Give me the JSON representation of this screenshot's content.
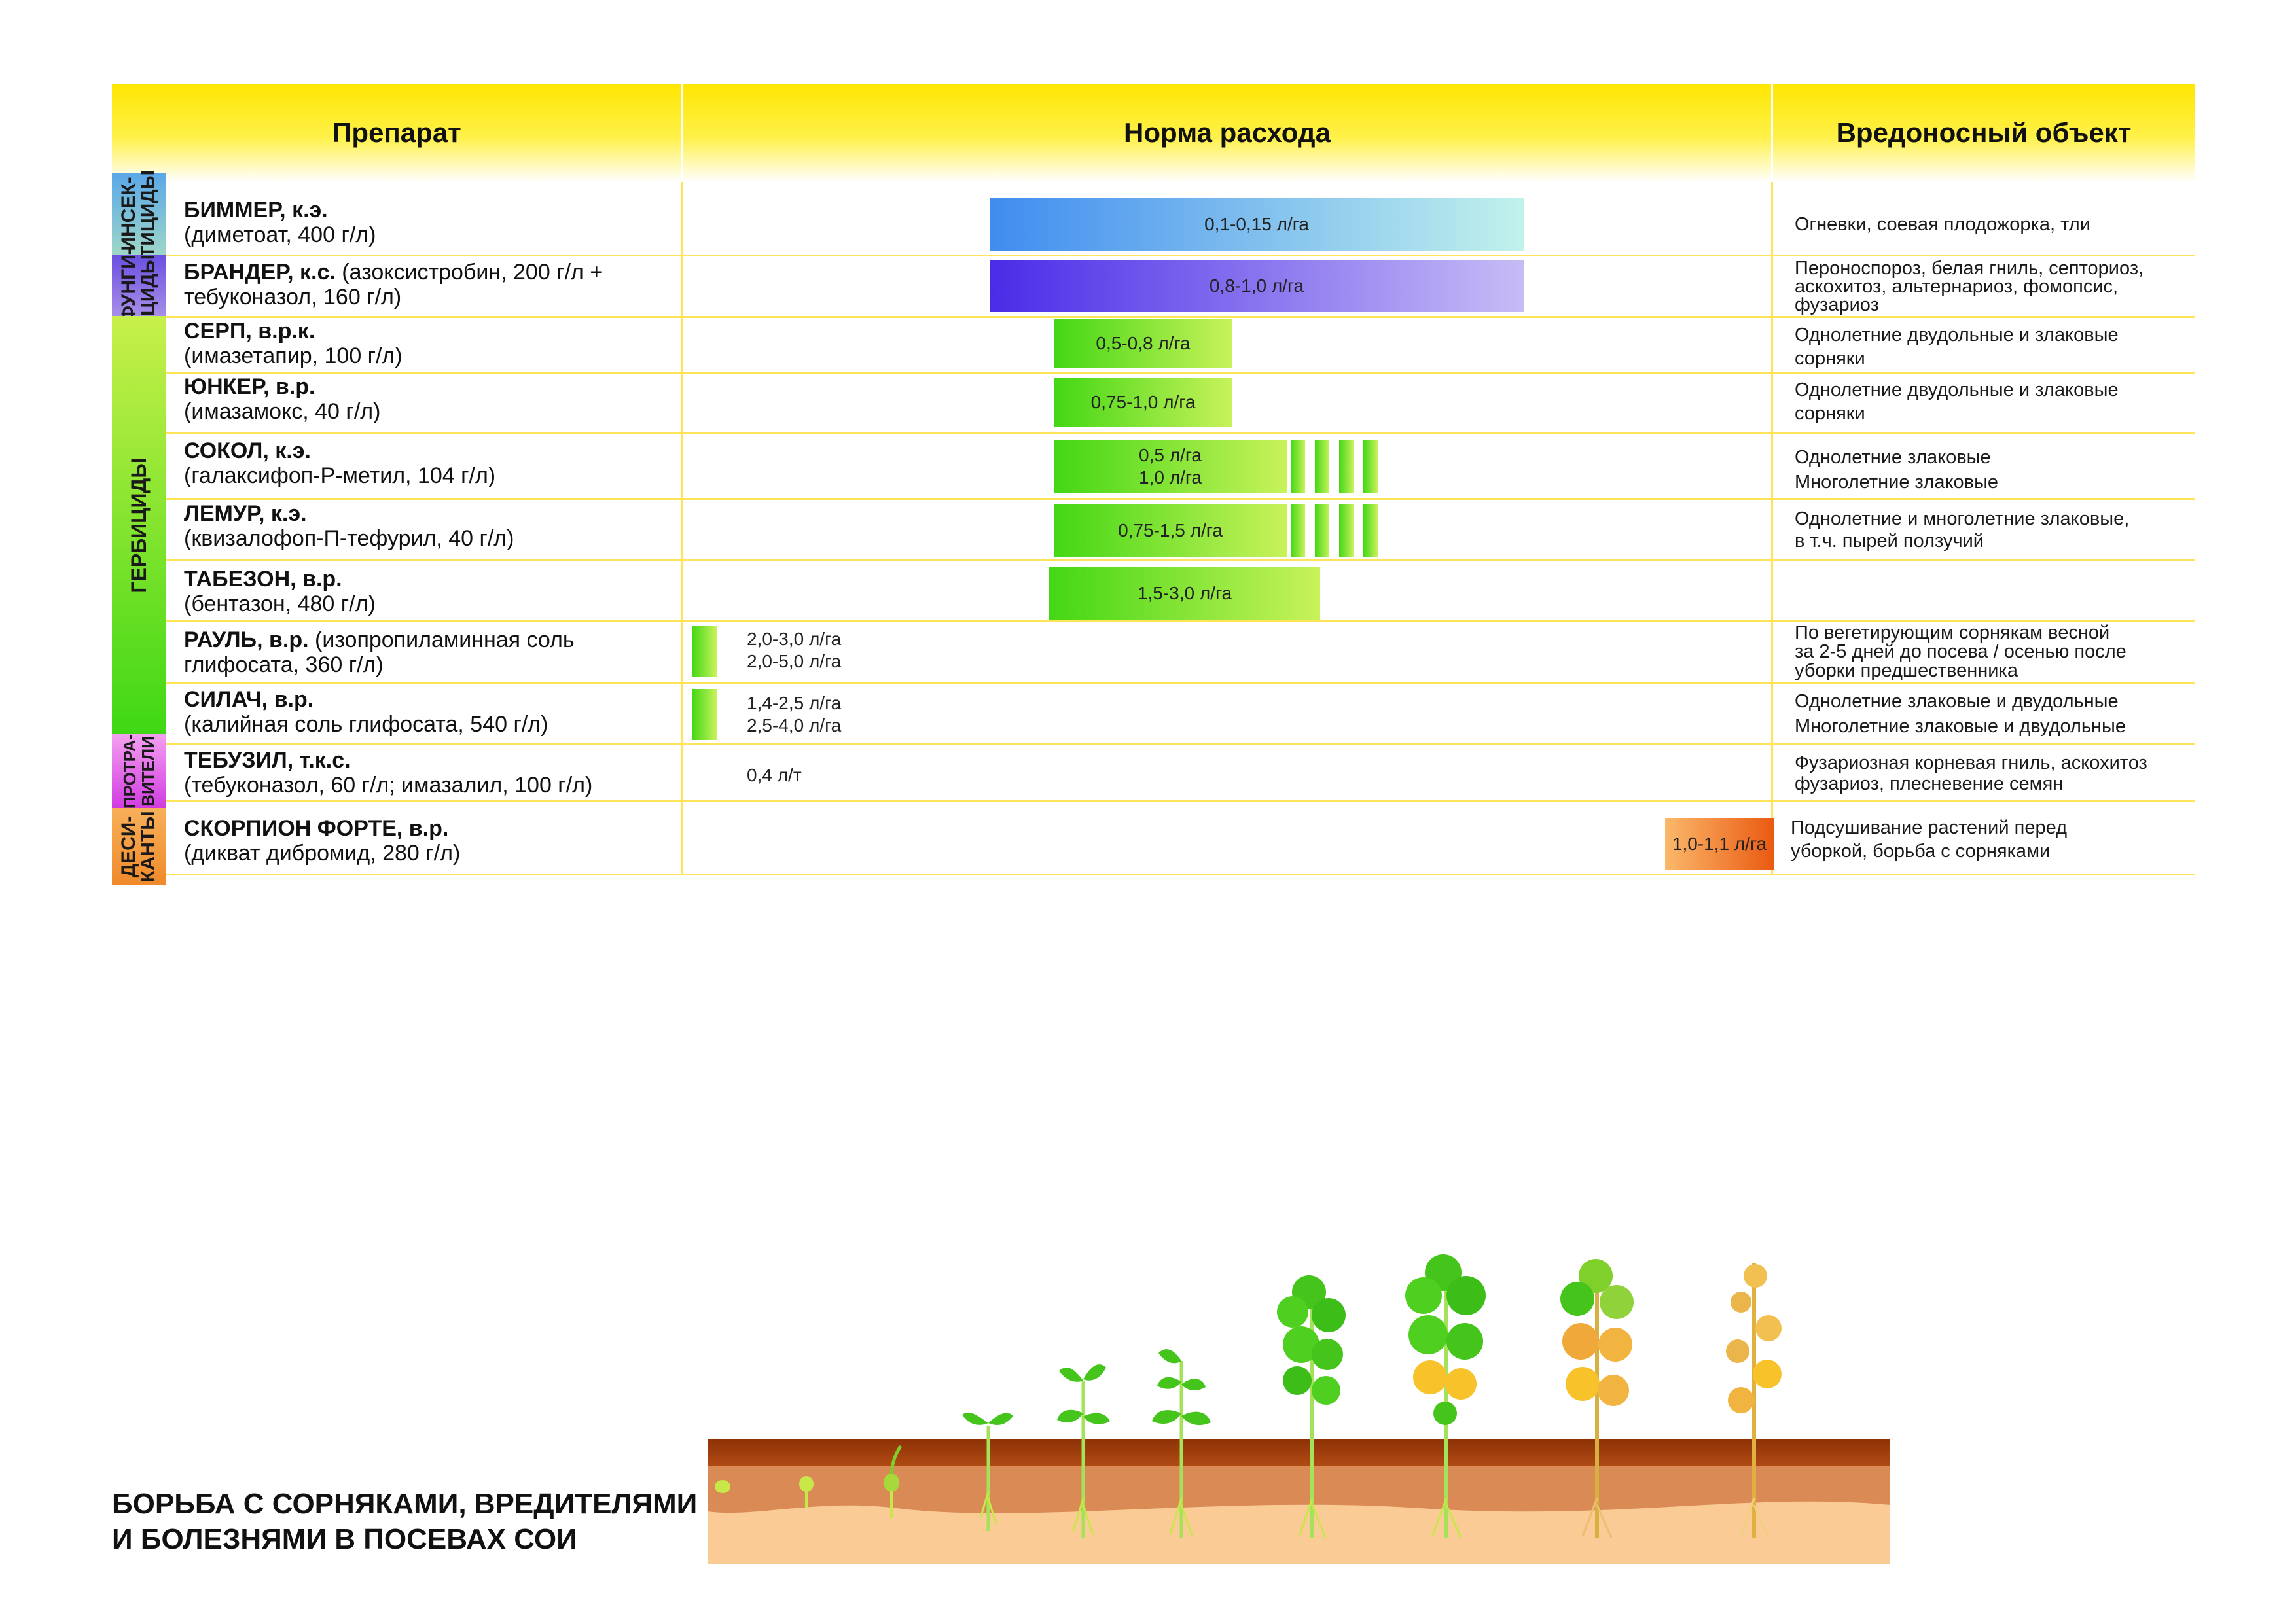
{
  "header": {
    "preparation": "Препарат",
    "rate": "Норма расхода",
    "target": "Вредоносный объект"
  },
  "categories": [
    {
      "label": "ИНСЕК-\nТИЦИДЫ",
      "color_top": "#5aa7e8",
      "color_bottom": "#9dd6c8"
    },
    {
      "label": "ФУНГИ-\nЦИДЫ",
      "color_top": "#6a4fe0",
      "color_bottom": "#a78ee8"
    },
    {
      "label": "ГЕРБИЦИДЫ",
      "color_top": "#c8f04a",
      "color_bottom": "#3fd814"
    },
    {
      "label": "ПРОТРА-\nВИТЕЛИ",
      "color_top": "#f4a0f0",
      "color_bottom": "#d13ce0"
    },
    {
      "label": "ДЕСИ-\nКАНТЫ",
      "color_top": "#f7b05a",
      "color_bottom": "#f08a2a"
    }
  ],
  "rows": [
    {
      "name": "БИММЕР, к.э.",
      "line1_rest": "",
      "line2": "(диметоат, 400 г/л)",
      "rate": "0,1-0,15 л/га",
      "target": [
        "Огневки, соевая плодожорка, тли"
      ]
    },
    {
      "name": "БРАНДЕР, к.с.",
      "line1_rest": " (азоксистробин, 200 г/л +",
      "line2": "тебуконазол, 160 г/л)",
      "rate": "0,8-1,0 л/га",
      "target": [
        "Пероноспороз, белая гниль, септориоз,",
        "аскохитоз, альтернариоз, фомопсис,",
        "фузариоз"
      ]
    },
    {
      "name": "СЕРП, в.р.к.",
      "line1_rest": "",
      "line2": "(имазетапир, 100 г/л)",
      "rate": "0,5-0,8 л/га",
      "target": [
        "Однолетние двудольные и злаковые",
        "сорняки"
      ]
    },
    {
      "name": "ЮНКЕР, в.р.",
      "line1_rest": "",
      "line2": "(имазамокс, 40 г/л)",
      "rate": "0,75-1,0 л/га",
      "target": [
        "Однолетние двудольные и злаковые",
        "сорняки"
      ]
    },
    {
      "name": "СОКОЛ, к.э.",
      "line1_rest": "",
      "line2": "(галаксифоп-Р-метил, 104 г/л)",
      "rate": "0,5 л/га\n1,0 л/га",
      "target": [
        "Однолетние злаковые",
        "Многолетние злаковые"
      ]
    },
    {
      "name": "ЛЕМУР, к.э.",
      "line1_rest": "",
      "line2": "(квизалофоп-П-тефурил, 40 г/л)",
      "rate": "0,75-1,5 л/га",
      "target": [
        "Однолетние и многолетние злаковые,",
        "в т.ч. пырей ползучий"
      ]
    },
    {
      "name": "ТАБЕЗОН, в.р.",
      "line1_rest": "",
      "line2": "(бентазон, 480 г/л)",
      "rate": "1,5-3,0 л/га",
      "target": []
    },
    {
      "name": "РАУЛЬ, в.р.",
      "line1_rest": " (изопропиламинная соль",
      "line2": "глифосата, 360 г/л)",
      "rate": "2,0-3,0 л/га\n2,0-5,0 л/га",
      "target": [
        "По вегетирующим сорнякам весной",
        "за 2-5 дней до посева / осенью после",
        "уборки предшественника"
      ]
    },
    {
      "name": "СИЛАЧ, в.р.",
      "line1_rest": "",
      "line2": "(калийная соль глифосата, 540 г/л)",
      "rate": "1,4-2,5 л/га\n2,5-4,0 л/га",
      "target": [
        "Однолетние злаковые и двудольные",
        "Многолетние злаковые и двудольные"
      ]
    },
    {
      "name": "ТЕБУЗИЛ, т.к.с.",
      "line1_rest": "",
      "line2": "(тебуконазол, 60 г/л; имазалил, 100 г/л)",
      "rate": "0,4 л/т",
      "target": [
        "Фузариозная корневая гниль, аскохитоз",
        "фузариоз, плесневение семян"
      ]
    },
    {
      "name": "СКОРПИОН ФОРТЕ, в.р.",
      "line1_rest": "",
      "line2": "(дикват дибромид, 280 г/л)",
      "rate": "1,0-1,1 л/га",
      "target": [
        "Подсушивание растений перед",
        "уборкой, борьба с сорняками"
      ]
    }
  ],
  "title": "БОРЬБА С СОРНЯКАМИ, ВРЕДИТЕЛЯМИ\nИ БОЛЕЗНЯМИ В ПОСЕВАХ СОИ",
  "colors": {
    "header_yellow": "#ffe600",
    "grid_line": "#ffe45a",
    "soil_dark": "#a0400e",
    "soil_mid": "#d98a55",
    "soil_light": "#fbcb95"
  }
}
